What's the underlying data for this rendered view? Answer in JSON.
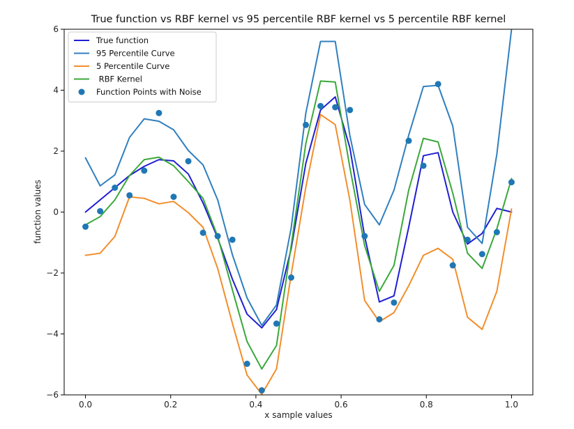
{
  "chart_data": {
    "type": "line",
    "title": "True function vs RBF kernel vs 95 percentile RBF kernel vs 5 percentile RBF kernel",
    "xlabel": "x sample values",
    "ylabel": "function values",
    "xlim": [
      -0.05,
      1.05
    ],
    "ylim": [
      -6,
      6
    ],
    "xticks": [
      0.0,
      0.2,
      0.4,
      0.6,
      0.8,
      1.0
    ],
    "xtick_labels": [
      "0.0",
      "0.2",
      "0.4",
      "0.6",
      "0.8",
      "1.0"
    ],
    "yticks": [
      -6,
      -4,
      -2,
      0,
      2,
      4,
      6
    ],
    "ytick_labels": [
      "−6",
      "−4",
      "−2",
      "0",
      "2",
      "4",
      "6"
    ],
    "grid": false,
    "legend_position": "top-left",
    "x": [
      0.0,
      0.0345,
      0.069,
      0.1034,
      0.1379,
      0.1724,
      0.2069,
      0.2414,
      0.2759,
      0.3103,
      0.3448,
      0.3793,
      0.4138,
      0.4483,
      0.4828,
      0.5172,
      0.5517,
      0.5862,
      0.6207,
      0.6552,
      0.6897,
      0.7241,
      0.7586,
      0.7931,
      0.8276,
      0.8621,
      0.8966,
      0.931,
      0.9655,
      1.0
    ],
    "series": [
      {
        "name": "True function",
        "kind": "line",
        "color": "#1f1fd1",
        "values": [
          0.0,
          0.4,
          0.8,
          1.2,
          1.5,
          1.72,
          1.68,
          1.25,
          0.3,
          -0.85,
          -2.2,
          -3.35,
          -3.8,
          -3.2,
          -1.2,
          1.6,
          3.35,
          3.78,
          2.1,
          -0.8,
          -2.95,
          -2.75,
          -0.5,
          1.85,
          1.95,
          0.0,
          -1.05,
          -0.7,
          0.12,
          0.0
        ]
      },
      {
        "name": "95 Percentile Curve",
        "kind": "line",
        "color": "#2f7fbf",
        "values": [
          1.78,
          0.86,
          1.22,
          2.45,
          3.06,
          2.98,
          2.7,
          2.02,
          1.55,
          0.4,
          -1.4,
          -2.82,
          -3.72,
          -3.05,
          -0.52,
          3.25,
          5.6,
          5.6,
          2.5,
          0.25,
          -0.42,
          0.72,
          2.52,
          4.12,
          4.16,
          2.82,
          -0.5,
          -1.03,
          1.9,
          6.0
        ]
      },
      {
        "name": "5 Percentile Curve",
        "kind": "line",
        "color": "#f28e2b",
        "values": [
          -1.42,
          -1.35,
          -0.8,
          0.5,
          0.45,
          0.27,
          0.35,
          -0.02,
          -0.5,
          -1.85,
          -3.65,
          -5.35,
          -5.98,
          -5.15,
          -2.05,
          0.82,
          3.2,
          2.87,
          0.38,
          -2.9,
          -3.6,
          -3.3,
          -2.42,
          -1.42,
          -1.19,
          -1.55,
          -3.45,
          -3.85,
          -2.6,
          0.1
        ]
      },
      {
        "name": " RBF Kernel",
        "kind": "line",
        "color": "#3aa83a",
        "values": [
          -0.42,
          -0.15,
          0.4,
          1.2,
          1.72,
          1.8,
          1.52,
          1.0,
          0.45,
          -0.8,
          -2.55,
          -4.25,
          -5.15,
          -4.38,
          -1.1,
          2.25,
          4.3,
          4.27,
          1.45,
          -1.1,
          -2.6,
          -1.75,
          0.72,
          2.42,
          2.3,
          0.62,
          -1.35,
          -1.85,
          -0.55,
          1.1
        ]
      },
      {
        "name": "Function Points with Noise",
        "kind": "scatter",
        "color": "#1f77b4",
        "values": [
          -0.48,
          0.03,
          0.8,
          0.55,
          1.36,
          3.25,
          0.5,
          1.67,
          -0.68,
          -0.79,
          -0.91,
          -4.98,
          -5.85,
          -3.66,
          -2.15,
          2.86,
          3.48,
          3.44,
          3.35,
          -0.79,
          -3.52,
          -2.97,
          2.34,
          1.52,
          4.2,
          -1.75,
          -0.91,
          -1.38,
          -0.66,
          0.98
        ]
      }
    ]
  }
}
